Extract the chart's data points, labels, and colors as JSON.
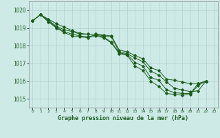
{
  "title": "Graphe pression niveau de la mer (hPa)",
  "ylim": [
    1014.5,
    1020.5
  ],
  "yticks": [
    1015,
    1016,
    1017,
    1018,
    1019,
    1020
  ],
  "xticks": [
    0,
    1,
    2,
    3,
    4,
    5,
    6,
    7,
    8,
    9,
    10,
    11,
    12,
    13,
    14,
    15,
    16,
    17,
    18,
    19,
    20,
    21,
    22,
    23
  ],
  "background_color": "#ceeae7",
  "grid_color": "#b0d4cc",
  "line_color": "#1a5c1a",
  "curves": [
    [
      1019.4,
      1019.75,
      1019.5,
      1019.25,
      1019.05,
      1018.85,
      1018.7,
      1018.65,
      1018.65,
      1018.6,
      1018.55,
      1017.75,
      1017.65,
      1017.45,
      1017.25,
      1016.75,
      1016.6,
      1016.1,
      1016.05,
      1015.95,
      1015.85,
      1015.85,
      1016.0,
      null
    ],
    [
      1019.4,
      1019.75,
      1019.45,
      1019.1,
      1018.9,
      1018.8,
      1018.65,
      1018.65,
      1018.65,
      1018.55,
      1018.5,
      1017.65,
      1017.55,
      1017.3,
      1017.1,
      1016.55,
      1016.35,
      1015.95,
      1015.6,
      1015.5,
      1015.4,
      1015.45,
      1016.0,
      null
    ],
    [
      1019.4,
      1019.75,
      1019.4,
      1019.05,
      1018.8,
      1018.65,
      1018.55,
      1018.5,
      1018.6,
      1018.5,
      1018.2,
      1017.6,
      1017.5,
      1017.05,
      1016.85,
      1016.2,
      1016.05,
      1015.5,
      1015.35,
      1015.3,
      1015.3,
      1015.85,
      1016.0,
      null
    ],
    [
      1019.4,
      1019.75,
      1019.35,
      1019.0,
      1018.75,
      1018.55,
      1018.5,
      1018.45,
      1018.55,
      1018.45,
      1018.15,
      1017.55,
      1017.45,
      1016.85,
      1016.6,
      1016.0,
      1015.7,
      1015.3,
      1015.25,
      1015.2,
      1015.25,
      1015.75,
      1016.0,
      null
    ]
  ]
}
